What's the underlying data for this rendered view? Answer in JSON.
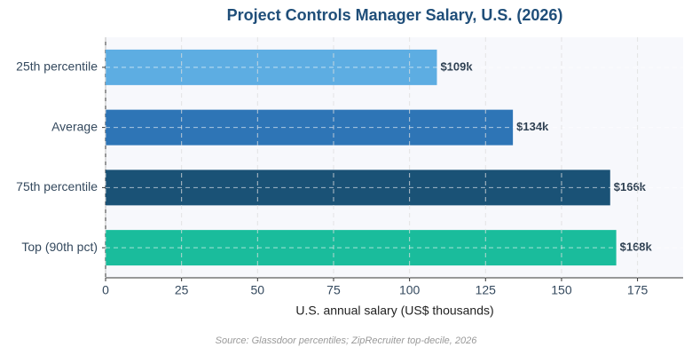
{
  "chart_data": {
    "type": "hbar",
    "title": "Project Controls Manager Salary, U.S. (2026)",
    "categories": [
      "25th percentile",
      "Average",
      "75th percentile",
      "Top (90th pct)"
    ],
    "values": [
      109,
      134,
      166,
      168
    ],
    "value_labels": [
      "$109k",
      "$134k",
      "$166k",
      "$168k"
    ],
    "colors": [
      "#5dade2",
      "#2e75b6",
      "#1a5276",
      "#1abc9c"
    ],
    "xlabel": "U.S. annual salary (US$ thousands)",
    "xlim": [
      0,
      190
    ],
    "xticks": [
      0,
      25,
      50,
      75,
      100,
      125,
      150,
      175
    ],
    "grid": true,
    "source": "Source: Glassdoor percentiles; ZipRecruiter top-decile, 2026"
  }
}
